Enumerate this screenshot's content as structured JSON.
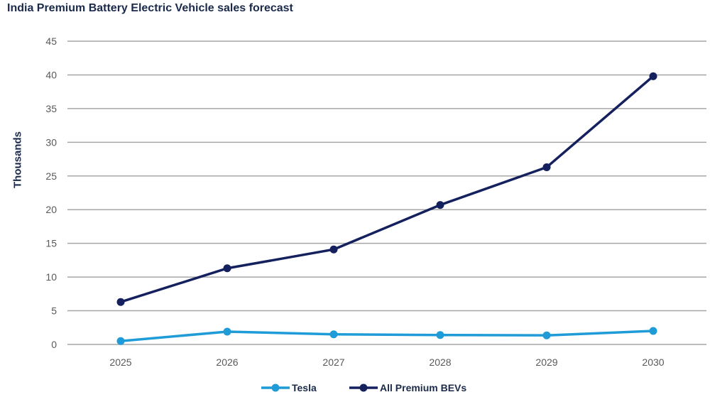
{
  "chart_data": {
    "type": "line",
    "title": "India Premium Battery Electric Vehicle sales forecast",
    "xlabel": "",
    "ylabel": "Thousands",
    "x": [
      "2025",
      "2026",
      "2027",
      "2028",
      "2029",
      "2030"
    ],
    "ylim": [
      0,
      45
    ],
    "yticks": [
      0,
      5,
      10,
      15,
      20,
      25,
      30,
      35,
      40,
      45
    ],
    "grid": true,
    "legend_position": "bottom",
    "series": [
      {
        "name": "Tesla",
        "color": "#1f9bd7",
        "values": [
          0.5,
          1.9,
          1.5,
          1.4,
          1.35,
          2.0
        ]
      },
      {
        "name": "All Premium BEVs",
        "color": "#14215e",
        "values": [
          6.3,
          11.3,
          14.1,
          20.7,
          26.3,
          39.8
        ]
      }
    ]
  }
}
